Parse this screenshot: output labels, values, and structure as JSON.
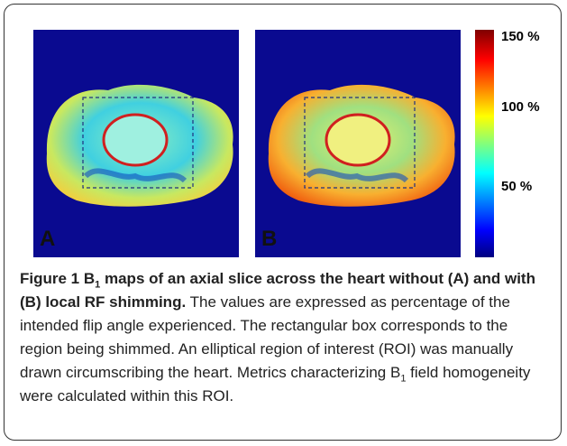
{
  "figure": {
    "panels": [
      {
        "label": "A"
      },
      {
        "label": "B"
      }
    ],
    "colorbar": {
      "labels": [
        "150 %",
        "100 %",
        "50 %"
      ]
    },
    "caption": {
      "label": "Figure 1",
      "title": [
        "B",
        "1",
        " maps of an axial slice across the heart without (A) and with (B) local RF shimming."
      ],
      "body": [
        "The values are expressed as percentage of the intended flip angle experienced. The rectangular box corresponds to the region being shimmed. An elliptical region of interest (ROI) was manually drawn circumscribing the heart. Metrics characterizing B",
        "1",
        " field homogeneity were calculated within this ROI."
      ]
    }
  }
}
